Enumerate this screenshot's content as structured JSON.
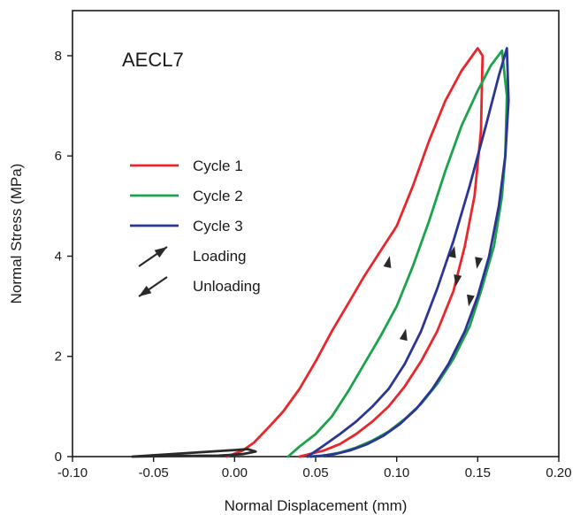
{
  "chart_data": {
    "type": "line",
    "annotation": "AECL7",
    "xlabel": "Normal Displacement (mm)",
    "ylabel": "Normal Stress (MPa)",
    "xlim": [
      -0.1,
      0.2
    ],
    "ylim": [
      0,
      8.9
    ],
    "xticks": [
      -0.1,
      -0.05,
      0.0,
      0.05,
      0.1,
      0.15,
      0.2
    ],
    "xtick_labels": [
      "-0.10",
      "-0.05",
      "0.00",
      "0.05",
      "0.10",
      "0.15",
      "0.20"
    ],
    "yticks": [
      0,
      2,
      4,
      6,
      8
    ],
    "ytick_labels": [
      "0",
      "2",
      "4",
      "6",
      "8"
    ],
    "grid": false,
    "legend_position": "middle-left",
    "series": [
      {
        "name": "Cycle 1",
        "color": "#e8262b",
        "x": [
          -0.005,
          0.005,
          0.012,
          0.02,
          0.03,
          0.04,
          0.05,
          0.06,
          0.07,
          0.08,
          0.09,
          0.1,
          0.11,
          0.12,
          0.13,
          0.14,
          0.15,
          0.153,
          0.152,
          0.148,
          0.142,
          0.135,
          0.125,
          0.115,
          0.105,
          0.095,
          0.085,
          0.075,
          0.065,
          0.055,
          0.045,
          0.04
        ],
        "y": [
          0.0,
          0.12,
          0.28,
          0.55,
          0.9,
          1.35,
          1.9,
          2.5,
          3.05,
          3.6,
          4.1,
          4.6,
          5.4,
          6.3,
          7.1,
          7.7,
          8.15,
          8.0,
          6.5,
          5.2,
          4.2,
          3.3,
          2.5,
          1.9,
          1.4,
          1.0,
          0.7,
          0.45,
          0.25,
          0.12,
          0.04,
          0.0
        ]
      },
      {
        "name": "Cycle 2",
        "color": "#1aa34a",
        "x": [
          0.033,
          0.04,
          0.05,
          0.06,
          0.07,
          0.08,
          0.09,
          0.1,
          0.11,
          0.12,
          0.13,
          0.14,
          0.15,
          0.158,
          0.165,
          0.168,
          0.167,
          0.165,
          0.16,
          0.152,
          0.145,
          0.135,
          0.125,
          0.115,
          0.105,
          0.095,
          0.085,
          0.075,
          0.065,
          0.055,
          0.045
        ],
        "y": [
          0.0,
          0.2,
          0.45,
          0.8,
          1.3,
          1.85,
          2.4,
          3.0,
          3.8,
          4.7,
          5.7,
          6.6,
          7.3,
          7.8,
          8.1,
          7.2,
          6.0,
          5.2,
          4.2,
          3.3,
          2.6,
          1.95,
          1.45,
          1.05,
          0.75,
          0.5,
          0.32,
          0.18,
          0.08,
          0.02,
          0.0
        ]
      },
      {
        "name": "Cycle 3",
        "color": "#2b3694",
        "x": [
          0.045,
          0.055,
          0.065,
          0.075,
          0.085,
          0.095,
          0.105,
          0.115,
          0.125,
          0.135,
          0.145,
          0.155,
          0.163,
          0.168,
          0.169,
          0.167,
          0.163,
          0.157,
          0.15,
          0.142,
          0.132,
          0.122,
          0.112,
          0.102,
          0.092,
          0.082,
          0.072,
          0.062,
          0.052,
          0.047
        ],
        "y": [
          0.0,
          0.22,
          0.45,
          0.7,
          1.0,
          1.35,
          1.85,
          2.5,
          3.35,
          4.3,
          5.4,
          6.6,
          7.6,
          8.15,
          7.1,
          6.0,
          5.0,
          4.0,
          3.2,
          2.5,
          1.85,
          1.35,
          0.95,
          0.65,
          0.42,
          0.25,
          0.13,
          0.05,
          0.01,
          0.0
        ]
      },
      {
        "name": "",
        "color": "#2a2a2a",
        "x": [
          -0.063,
          0.0,
          0.008,
          0.013,
          0.005,
          -0.01,
          -0.04,
          -0.063
        ],
        "y": [
          0.0,
          0.13,
          0.15,
          0.1,
          0.05,
          0.02,
          0.01,
          0.0
        ]
      }
    ],
    "arrows": [
      {
        "x": 0.095,
        "y": 3.9,
        "direction": "up",
        "color": "#2a2a2a"
      },
      {
        "x": 0.105,
        "y": 2.45,
        "direction": "up",
        "color": "#2a2a2a"
      },
      {
        "x": 0.135,
        "y": 4.1,
        "direction": "up",
        "color": "#2a2a2a"
      },
      {
        "x": 0.137,
        "y": 3.5,
        "direction": "down",
        "color": "#2a2a2a"
      },
      {
        "x": 0.15,
        "y": 3.85,
        "direction": "down",
        "color": "#2a2a2a"
      },
      {
        "x": 0.145,
        "y": 3.1,
        "direction": "down",
        "color": "#2a2a2a"
      }
    ],
    "legend": [
      {
        "kind": "line",
        "label": "Cycle 1",
        "color": "#e8262b"
      },
      {
        "kind": "line",
        "label": "Cycle 2",
        "color": "#1aa34a"
      },
      {
        "kind": "line",
        "label": "Cycle 3",
        "color": "#2b3694"
      },
      {
        "kind": "arrow-up",
        "label": "Loading",
        "color": "#2a2a2a"
      },
      {
        "kind": "arrow-down",
        "label": "Unloading",
        "color": "#2a2a2a"
      }
    ]
  }
}
